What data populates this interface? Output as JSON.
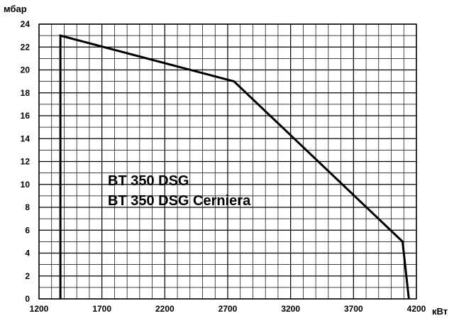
{
  "chart_data": {
    "type": "line",
    "title": "",
    "xlabel": "кВт",
    "ylabel": "мбар",
    "xlim": [
      1200,
      4200
    ],
    "ylim": [
      0,
      24
    ],
    "x_ticks": [
      1200,
      1700,
      2200,
      2700,
      3200,
      3700,
      4200
    ],
    "y_ticks": [
      0,
      2,
      4,
      6,
      8,
      10,
      12,
      14,
      16,
      18,
      20,
      22,
      24
    ],
    "grid": true,
    "legend": "none",
    "annotations": [
      "BT 350 DSG",
      "BT 350 DSG Cerniera"
    ],
    "series": [
      {
        "x": [
          1370,
          1370,
          2750,
          4090,
          4140
        ],
        "y": [
          0,
          23,
          19,
          5,
          0
        ]
      }
    ],
    "line_color": "#000000",
    "grid_color": "#000000"
  }
}
